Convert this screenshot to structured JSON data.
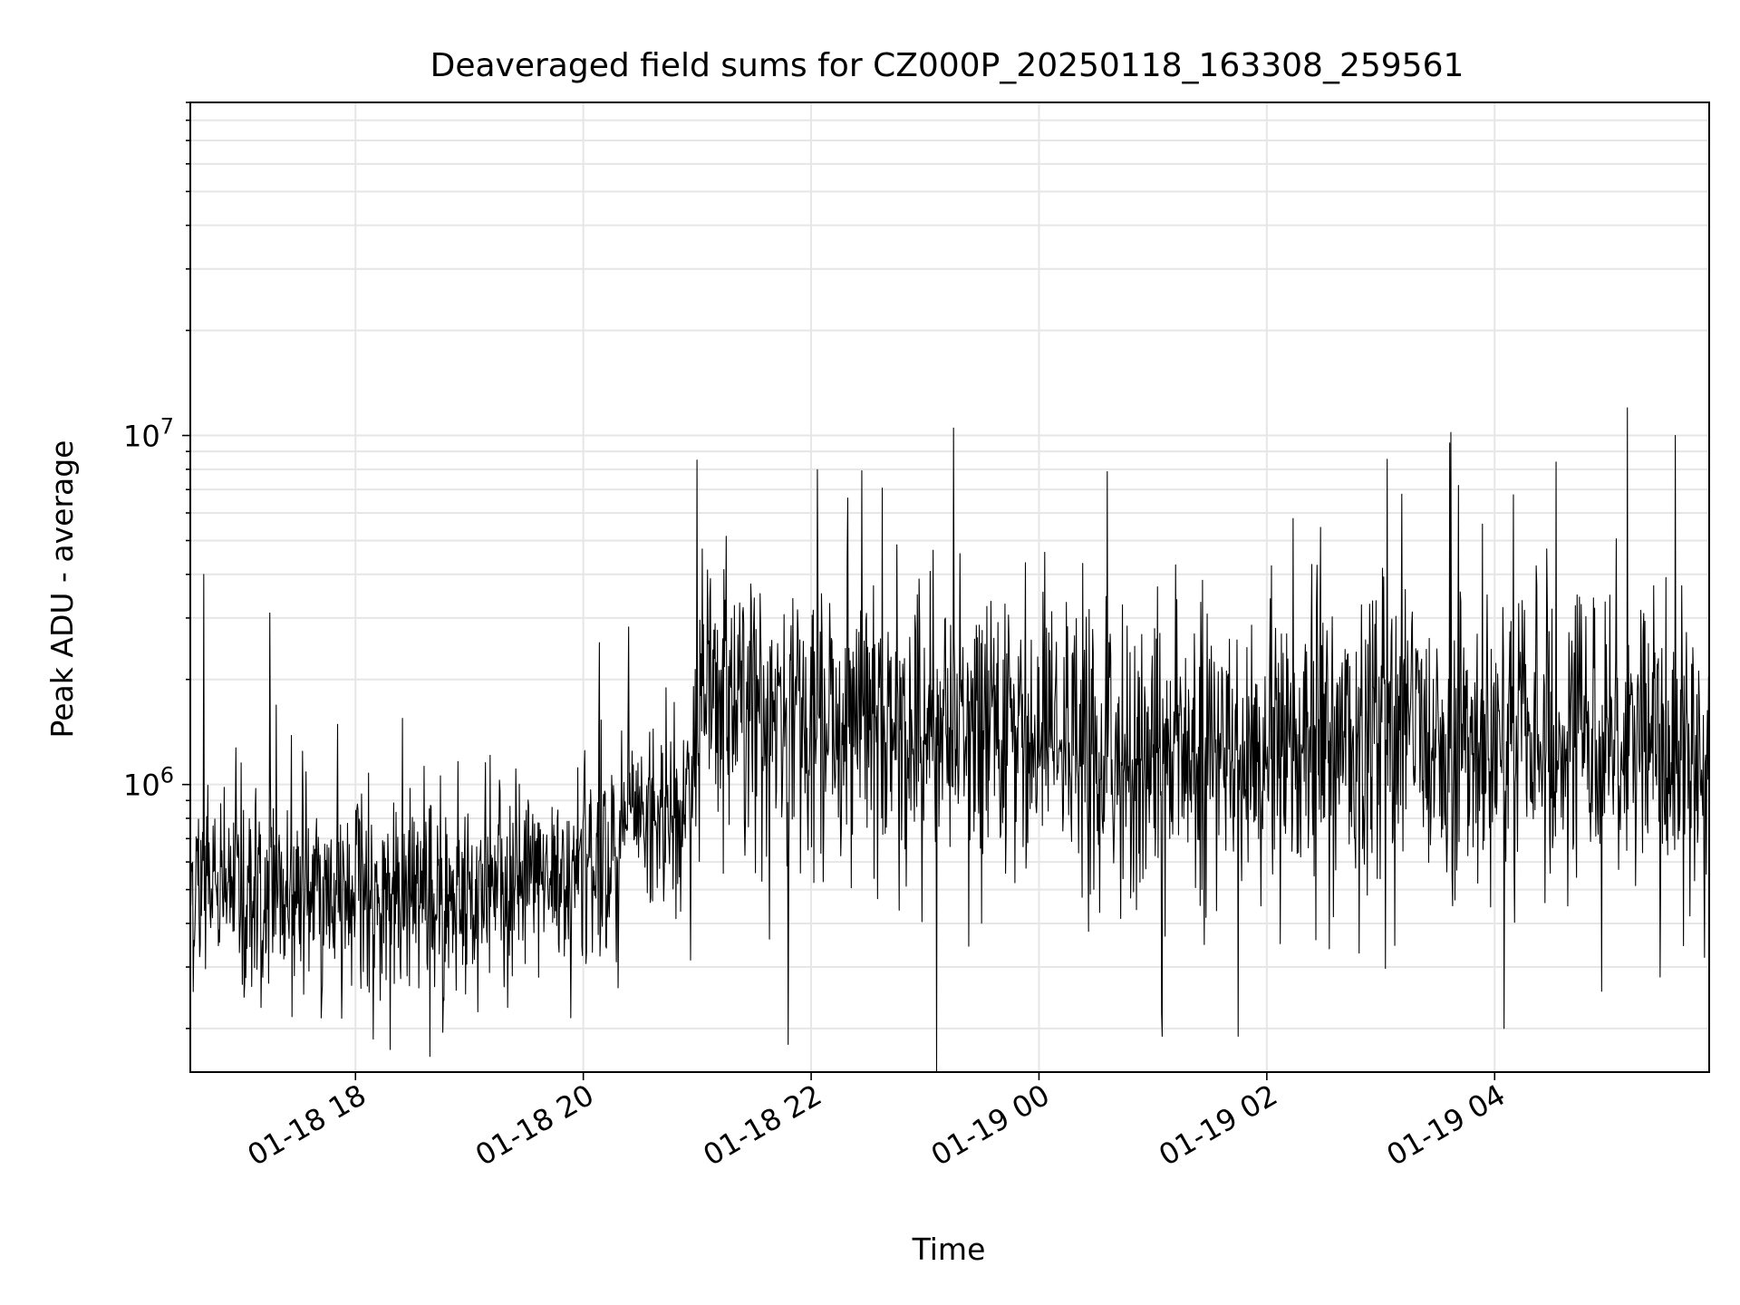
{
  "chart_data": {
    "type": "line",
    "title": "Deaveraged field sums for CZ000P_20250118_163308_259561",
    "xlabel": "Time",
    "ylabel": "Peak ADU - average",
    "y_scale": "log",
    "ylim": [
      150000,
      90000000
    ],
    "xlim": [
      "2025-01-18 16:33",
      "2025-01-19 05:53"
    ],
    "grid": true,
    "line_color": "#000000",
    "grid_color": "#e6e6e6",
    "x_ticks": [
      {
        "value": "2025-01-18 18:00",
        "label": "01-18 18"
      },
      {
        "value": "2025-01-18 20:00",
        "label": "01-18 20"
      },
      {
        "value": "2025-01-18 22:00",
        "label": "01-18 22"
      },
      {
        "value": "2025-01-19 00:00",
        "label": "01-19 00"
      },
      {
        "value": "2025-01-19 02:00",
        "label": "01-19 02"
      },
      {
        "value": "2025-01-19 04:00",
        "label": "01-19 04"
      }
    ],
    "y_ticks": [
      {
        "value": 1000000,
        "base": "10",
        "exp": "6"
      },
      {
        "value": 10000000,
        "base": "10",
        "exp": "7"
      }
    ],
    "series": [
      {
        "x_start": "2025-01-18 16:33",
        "x_end": "2025-01-19 05:53",
        "trend": [
          {
            "x": "2025-01-18 16:33",
            "y": 520000
          },
          {
            "x": "2025-01-18 17:30",
            "y": 500000
          },
          {
            "x": "2025-01-18 18:30",
            "y": 470000
          },
          {
            "x": "2025-01-18 19:10",
            "y": 460000
          },
          {
            "x": "2025-01-18 19:50",
            "y": 560000
          },
          {
            "x": "2025-01-18 20:30",
            "y": 760000
          },
          {
            "x": "2025-01-18 20:55",
            "y": 850000
          },
          {
            "x": "2025-01-18 21:05",
            "y": 1900000
          },
          {
            "x": "2025-01-18 22:00",
            "y": 1500000
          },
          {
            "x": "2025-01-18 23:00",
            "y": 1350000
          },
          {
            "x": "2025-01-19 00:00",
            "y": 1250000
          },
          {
            "x": "2025-01-19 01:00",
            "y": 1150000
          },
          {
            "x": "2025-01-19 02:00",
            "y": 1250000
          },
          {
            "x": "2025-01-19 03:00",
            "y": 1350000
          },
          {
            "x": "2025-01-19 04:00",
            "y": 1250000
          },
          {
            "x": "2025-01-19 05:00",
            "y": 1500000
          },
          {
            "x": "2025-01-19 05:53",
            "y": 1000000
          }
        ],
        "spikes": [
          {
            "x": "2025-01-18 16:40",
            "y": 4000000
          },
          {
            "x": "2025-01-18 17:15",
            "y": 3100000
          },
          {
            "x": "2025-01-18 21:00",
            "y": 8500000
          },
          {
            "x": "2025-01-18 21:48",
            "y": 180000
          },
          {
            "x": "2025-01-18 23:15",
            "y": 10500000
          },
          {
            "x": "2025-01-19 01:05",
            "y": 190000
          },
          {
            "x": "2025-01-19 01:45",
            "y": 190000
          },
          {
            "x": "2025-01-19 03:37",
            "y": 10200000
          },
          {
            "x": "2025-01-19 04:05",
            "y": 200000
          },
          {
            "x": "2025-01-19 05:10",
            "y": 12000000
          },
          {
            "x": "2025-01-19 05:35",
            "y": 10000000
          }
        ]
      }
    ]
  }
}
